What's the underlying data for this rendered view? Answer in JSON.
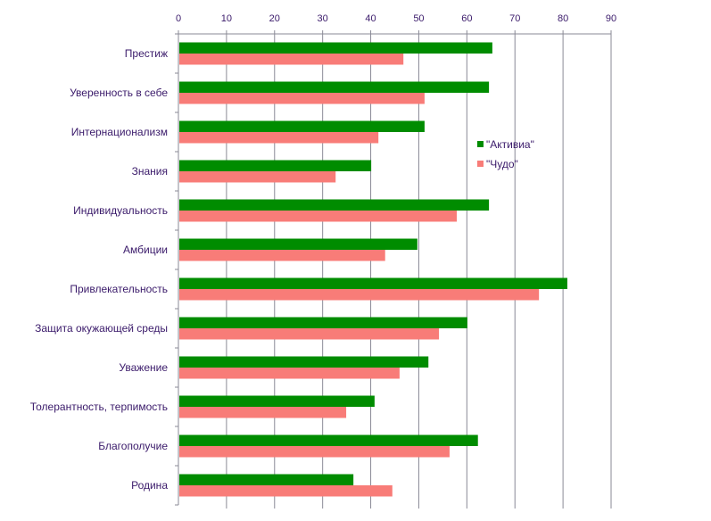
{
  "chart_data": {
    "type": "bar",
    "orientation": "horizontal",
    "title": "",
    "xlabel": "",
    "ylabel": "",
    "xlim": [
      0,
      90
    ],
    "x_ticks": [
      "0",
      "10",
      "20",
      "30",
      "40",
      "50",
      "60",
      "70",
      "80",
      "90"
    ],
    "grid": true,
    "legend_position": "right",
    "categories": [
      "Престиж",
      "Уверенность в себе",
      "Интернационализм",
      "Знания",
      "Индивидуальность",
      "Амбиции",
      "Привлекательность",
      "Защита окужающей среды",
      "Уважение",
      "Толерантность, терпимость",
      "Благополучие",
      "Родина"
    ],
    "series": [
      {
        "name": "\"Активиа\"",
        "color": "#008c00",
        "values": [
          65.3,
          64.6,
          51.2,
          40.1,
          64.6,
          49.7,
          80.9,
          60.1,
          52.0,
          40.8,
          62.3,
          36.4
        ]
      },
      {
        "name": "\"Чудо\"",
        "color": "#f87c78",
        "values": [
          46.8,
          51.2,
          41.6,
          32.7,
          57.9,
          43.0,
          75.0,
          54.2,
          46.0,
          34.9,
          56.4,
          44.5
        ]
      }
    ]
  }
}
